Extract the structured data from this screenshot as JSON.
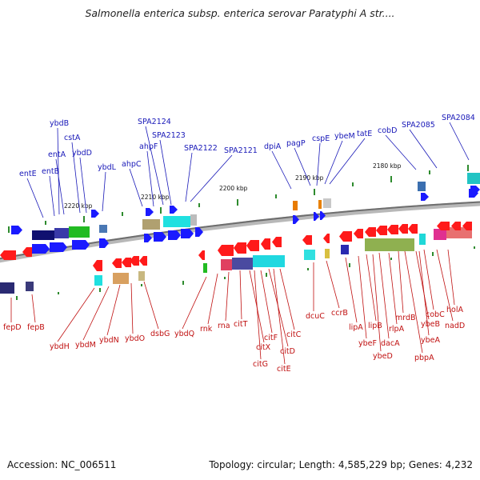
{
  "title": "Salmonella enterica subsp. enterica serovar Paratyphi A str....",
  "footer": {
    "accession": "Accession: NC_006511",
    "summary": "Topology: circular; Length: 4,585,229 bp; Genes: 4,232"
  },
  "colors": {
    "top_label": "#1818b8",
    "bottom_label": "#c01010",
    "backbone": "#8a8a8a",
    "forward_arrow": "#1a1aff",
    "reverse_arrow": "#ff1a1a",
    "tick": "#2e8b2e"
  },
  "scale_labels": [
    "2220 kbp",
    "2210 kbp",
    "2200 kbp",
    "2190 kbp",
    "2180 kbp"
  ],
  "top_genes": [
    "entE",
    "entB",
    "entA",
    "ybdB",
    "cstA",
    "ybdD",
    "ybdL",
    "ahpC",
    "ahpF",
    "SPA2124",
    "SPA2123",
    "SPA2122",
    "SPA2121",
    "dpiA",
    "pagP",
    "cspE",
    "ybeM",
    "tatE",
    "cobD",
    "SPA2085",
    "SPA2084"
  ],
  "bottom_genes": [
    "fepD",
    "fepB",
    "ybdH",
    "ybdM",
    "ybdN",
    "ybdO",
    "dsbG",
    "ybdQ",
    "rnk",
    "rna",
    "citT",
    "citX",
    "citG",
    "citF",
    "citE",
    "citD",
    "citC",
    "dcuC",
    "ccrB",
    "lipA",
    "ybeF",
    "lipB",
    "ybeD",
    "dacA",
    "rlpA",
    "mrdB",
    "ybeB",
    "cobC",
    "ybeA",
    "nadD",
    "holA",
    "pbpA"
  ]
}
